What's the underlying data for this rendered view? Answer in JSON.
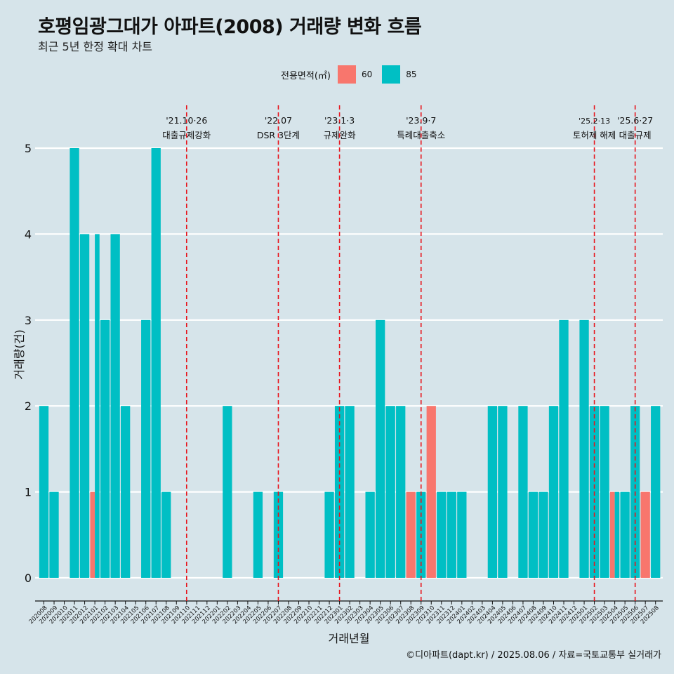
{
  "title": "호평임광그대가 아파트(2008) 거래량 변화 흐름",
  "subtitle": "최근 5년 한정 확대 차트",
  "legend": {
    "title": "전용면적(㎡)",
    "items": [
      {
        "label": "60",
        "color": "#f8766d"
      },
      {
        "label": "85",
        "color": "#00bfc4"
      }
    ]
  },
  "caption": "©디아파트(dapt.kr) / 2025.08.06 / 자료=국토교통부 실거래가",
  "chart_data": {
    "type": "bar",
    "stacking": "dodge",
    "xlabel": "거래년월",
    "ylabel": "거래량(건)",
    "ylim": [
      0,
      5
    ],
    "yticks": [
      0,
      1,
      2,
      3,
      4,
      5
    ],
    "grid": "horizontal",
    "legend_position": "top",
    "categories": [
      "202008",
      "202009",
      "202010",
      "202011",
      "202012",
      "202101",
      "202102",
      "202103",
      "202104",
      "202105",
      "202106",
      "202107",
      "202108",
      "202109",
      "202110",
      "202111",
      "202112",
      "202201",
      "202202",
      "202203",
      "202204",
      "202205",
      "202206",
      "202207",
      "202208",
      "202209",
      "202210",
      "202211",
      "202212",
      "202301",
      "202302",
      "202303",
      "202304",
      "202305",
      "202306",
      "202307",
      "202308",
      "202309",
      "202310",
      "202311",
      "202312",
      "202401",
      "202402",
      "202403",
      "202404",
      "202405",
      "202406",
      "202407",
      "202408",
      "202409",
      "202410",
      "202411",
      "202412",
      "202501",
      "202502",
      "202503",
      "202504",
      "202505",
      "202506",
      "202507",
      "202508"
    ],
    "series": [
      {
        "name": "60",
        "color": "#f8766d",
        "values": [
          0,
          0,
          0,
          0,
          0,
          1,
          0,
          0,
          0,
          0,
          0,
          0,
          0,
          0,
          0,
          0,
          0,
          0,
          0,
          0,
          0,
          0,
          0,
          0,
          0,
          0,
          0,
          0,
          0,
          0,
          0,
          0,
          0,
          0,
          0,
          0,
          1,
          0,
          2,
          0,
          0,
          0,
          0,
          0,
          0,
          0,
          0,
          0,
          0,
          0,
          0,
          0,
          0,
          0,
          0,
          0,
          1,
          0,
          0,
          1,
          0
        ]
      },
      {
        "name": "85",
        "color": "#00bfc4",
        "values": [
          2,
          1,
          0,
          5,
          4,
          4,
          3,
          4,
          2,
          0,
          3,
          5,
          1,
          0,
          0,
          0,
          0,
          0,
          2,
          0,
          0,
          1,
          0,
          1,
          0,
          0,
          0,
          0,
          1,
          2,
          2,
          0,
          1,
          3,
          2,
          2,
          0,
          1,
          0,
          1,
          1,
          1,
          0,
          0,
          2,
          2,
          0,
          2,
          1,
          1,
          2,
          3,
          0,
          3,
          2,
          2,
          1,
          1,
          2,
          0,
          2
        ]
      }
    ],
    "annotations": [
      {
        "x": "202110",
        "date": "'21.10·26",
        "text": "대출규제강화"
      },
      {
        "x": "202207",
        "date": "'22.07",
        "text": "DSR 3단계"
      },
      {
        "x": "202301",
        "date": "'23.1·3",
        "text": "규제완화"
      },
      {
        "x": "202309",
        "date": "'23.9·7",
        "text": "특례대출축소"
      },
      {
        "x": "202502",
        "date": "'25.2·13",
        "text": "토허제 해제"
      },
      {
        "x": "202506",
        "date": "'25.6·27",
        "text": "대출규제"
      }
    ]
  }
}
